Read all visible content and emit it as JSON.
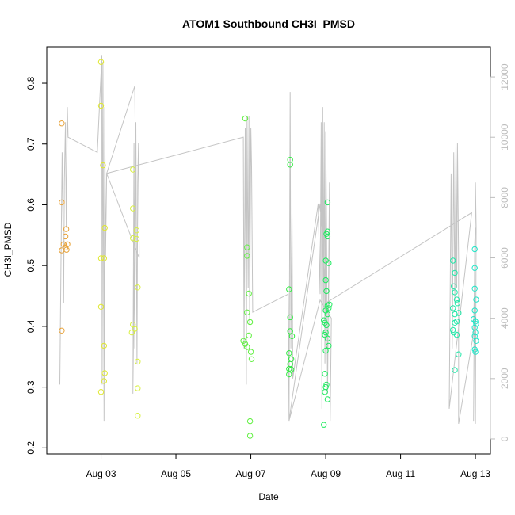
{
  "chart_data": {
    "type": "scatter",
    "title": "ATOM1 Southbound CH3I_PMSD",
    "xlabel": "Date",
    "ylabel": "CH3I_PMSD",
    "x_axis": {
      "min": 1.55,
      "max": 13.4,
      "ticks": [
        {
          "value": 3,
          "label": "Aug 03"
        },
        {
          "value": 5,
          "label": "Aug 05"
        },
        {
          "value": 7,
          "label": "Aug 07"
        },
        {
          "value": 9,
          "label": "Aug 09"
        },
        {
          "value": 11,
          "label": "Aug 11"
        },
        {
          "value": 13,
          "label": "Aug 13"
        }
      ]
    },
    "y_axis": {
      "min": 0.19,
      "max": 0.86,
      "ticks": [
        0.2,
        0.3,
        0.4,
        0.5,
        0.6,
        0.7,
        0.8
      ]
    },
    "y2_axis": {
      "min": -500,
      "max": 13000,
      "ticks": [
        0,
        2000,
        4000,
        6000,
        8000,
        10000,
        12000
      ],
      "color": "#bdbdbd"
    },
    "grid": false,
    "legend": "none",
    "series": [
      {
        "marker": "open-circle",
        "color": "#e8a33a",
        "points": [
          [
            1.95,
            0.734
          ],
          [
            1.95,
            0.604
          ],
          [
            1.95,
            0.393
          ],
          [
            1.95,
            0.525
          ],
          [
            2.0,
            0.535
          ],
          [
            2.05,
            0.548
          ],
          [
            2.07,
            0.56
          ],
          [
            2.05,
            0.53
          ],
          [
            2.1,
            0.535
          ],
          [
            2.08,
            0.526
          ]
        ]
      },
      {
        "marker": "open-circle",
        "color": "#e0e830",
        "points": [
          [
            3.0,
            0.835
          ],
          [
            3.0,
            0.763
          ],
          [
            3.05,
            0.665
          ],
          [
            3.1,
            0.562
          ],
          [
            3.0,
            0.512
          ],
          [
            3.08,
            0.512
          ],
          [
            3.0,
            0.432
          ],
          [
            3.08,
            0.368
          ],
          [
            3.1,
            0.323
          ],
          [
            3.08,
            0.31
          ],
          [
            3.0,
            0.292
          ]
        ]
      },
      {
        "marker": "open-circle",
        "color": "#d8f040",
        "points": [
          [
            3.85,
            0.658
          ],
          [
            3.85,
            0.594
          ],
          [
            3.85,
            0.545
          ],
          [
            3.95,
            0.558
          ],
          [
            3.95,
            0.544
          ],
          [
            3.98,
            0.464
          ],
          [
            3.85,
            0.403
          ],
          [
            3.9,
            0.396
          ],
          [
            3.82,
            0.39
          ],
          [
            3.98,
            0.342
          ],
          [
            3.98,
            0.298
          ],
          [
            3.98,
            0.253
          ]
        ]
      },
      {
        "marker": "open-circle",
        "color": "#60f040",
        "points": [
          [
            6.85,
            0.742
          ],
          [
            6.9,
            0.53
          ],
          [
            6.9,
            0.516
          ],
          [
            6.95,
            0.454
          ],
          [
            6.9,
            0.423
          ],
          [
            6.98,
            0.407
          ],
          [
            6.95,
            0.385
          ],
          [
            6.8,
            0.376
          ],
          [
            6.85,
            0.371
          ],
          [
            6.9,
            0.366
          ],
          [
            7.0,
            0.358
          ],
          [
            7.02,
            0.346
          ],
          [
            6.98,
            0.244
          ],
          [
            6.98,
            0.22
          ]
        ]
      },
      {
        "marker": "open-circle",
        "color": "#30ec40",
        "points": [
          [
            8.05,
            0.674
          ],
          [
            8.05,
            0.666
          ],
          [
            8.02,
            0.461
          ],
          [
            8.05,
            0.415
          ],
          [
            8.05,
            0.392
          ],
          [
            8.1,
            0.384
          ],
          [
            8.02,
            0.356
          ],
          [
            8.08,
            0.346
          ],
          [
            8.05,
            0.338
          ],
          [
            8.02,
            0.33
          ],
          [
            8.08,
            0.329
          ],
          [
            8.02,
            0.321
          ]
        ]
      },
      {
        "marker": "open-circle",
        "color": "#20ea60",
        "points": [
          [
            9.05,
            0.604
          ],
          [
            9.05,
            0.556
          ],
          [
            9.02,
            0.552
          ],
          [
            9.05,
            0.548
          ],
          [
            9.0,
            0.508
          ],
          [
            9.08,
            0.504
          ],
          [
            9.0,
            0.476
          ],
          [
            9.02,
            0.458
          ],
          [
            9.1,
            0.436
          ],
          [
            9.05,
            0.434
          ],
          [
            9.08,
            0.43
          ],
          [
            9.0,
            0.426
          ],
          [
            9.05,
            0.42
          ],
          [
            8.95,
            0.41
          ],
          [
            8.98,
            0.406
          ],
          [
            9.02,
            0.402
          ],
          [
            9.0,
            0.39
          ],
          [
            8.98,
            0.386
          ],
          [
            9.05,
            0.38
          ],
          [
            9.08,
            0.368
          ],
          [
            9.0,
            0.36
          ],
          [
            8.98,
            0.322
          ],
          [
            9.02,
            0.304
          ],
          [
            9.0,
            0.3
          ],
          [
            8.98,
            0.292
          ],
          [
            9.05,
            0.28
          ],
          [
            8.95,
            0.238
          ]
        ]
      },
      {
        "marker": "open-circle",
        "color": "#20e8a8",
        "points": [
          [
            12.4,
            0.508
          ],
          [
            12.45,
            0.488
          ],
          [
            12.42,
            0.466
          ],
          [
            12.45,
            0.456
          ],
          [
            12.5,
            0.444
          ],
          [
            12.52,
            0.438
          ],
          [
            12.4,
            0.43
          ],
          [
            12.45,
            0.42
          ],
          [
            12.55,
            0.422
          ],
          [
            12.5,
            0.408
          ],
          [
            12.45,
            0.406
          ],
          [
            12.4,
            0.394
          ],
          [
            12.42,
            0.39
          ],
          [
            12.5,
            0.386
          ],
          [
            12.55,
            0.354
          ],
          [
            12.45,
            0.328
          ]
        ]
      },
      {
        "marker": "open-circle",
        "color": "#20e6c8",
        "points": [
          [
            12.98,
            0.527
          ],
          [
            12.98,
            0.496
          ],
          [
            12.98,
            0.462
          ],
          [
            13.02,
            0.444
          ],
          [
            12.98,
            0.426
          ],
          [
            12.95,
            0.412
          ],
          [
            13.0,
            0.408
          ],
          [
            13.02,
            0.404
          ],
          [
            12.98,
            0.398
          ],
          [
            13.0,
            0.39
          ],
          [
            12.98,
            0.384
          ],
          [
            13.02,
            0.376
          ],
          [
            12.98,
            0.362
          ],
          [
            13.0,
            0.358
          ]
        ]
      },
      {
        "name": "",
        "type": "line",
        "axis": "y2",
        "color": "#c4c4c4",
        "points": [
          [
            1.9,
            1800
          ],
          [
            1.93,
            6000
          ],
          [
            1.96,
            9500
          ],
          [
            1.98,
            7500
          ],
          [
            2.0,
            4500
          ],
          [
            2.02,
            8500
          ],
          [
            2.05,
            10500
          ],
          [
            2.07,
            7000
          ],
          [
            2.1,
            11000
          ],
          [
            2.12,
            10000
          ],
          [
            2.9,
            9500
          ],
          [
            3.02,
            12700
          ],
          [
            3.03,
            1800
          ],
          [
            3.05,
            12500
          ],
          [
            3.08,
            600
          ],
          [
            3.1,
            11000
          ],
          [
            3.12,
            6000
          ],
          [
            3.15,
            8800
          ],
          [
            3.9,
            11700
          ],
          [
            3.92,
            9200
          ],
          [
            3.85,
            1500
          ],
          [
            3.88,
            9800
          ],
          [
            3.9,
            3000
          ],
          [
            3.93,
            10500
          ],
          [
            3.96,
            2500
          ],
          [
            3.98,
            8500
          ],
          [
            4.0,
            9800
          ],
          [
            4.02,
            6000
          ],
          [
            3.15,
            8800
          ],
          [
            6.8,
            10000
          ],
          [
            6.82,
            3000
          ],
          [
            6.85,
            10300
          ],
          [
            6.88,
            1800
          ],
          [
            6.9,
            10700
          ],
          [
            6.93,
            5000
          ],
          [
            6.95,
            10700
          ],
          [
            6.97,
            3800
          ],
          [
            7.0,
            10300
          ],
          [
            7.02,
            9000
          ],
          [
            7.05,
            4200
          ],
          [
            8.0,
            4800
          ],
          [
            8.02,
            600
          ],
          [
            8.05,
            11500
          ],
          [
            8.07,
            3000
          ],
          [
            8.1,
            7500
          ],
          [
            8.12,
            2000
          ],
          [
            8.8,
            7800
          ],
          [
            8.85,
            4800
          ],
          [
            8.88,
            10500
          ],
          [
            8.9,
            1000
          ],
          [
            8.92,
            11000
          ],
          [
            8.94,
            4200
          ],
          [
            8.96,
            10500
          ],
          [
            8.98,
            2500
          ],
          [
            9.0,
            10200
          ],
          [
            9.02,
            7500
          ],
          [
            9.05,
            1500
          ],
          [
            9.1,
            8500
          ],
          [
            9.12,
            600
          ],
          [
            9.15,
            4000
          ],
          [
            8.85,
            4600
          ],
          [
            8.02,
            600
          ],
          [
            8.85,
            7800
          ],
          [
            9.0,
            4500
          ],
          [
            12.9,
            7500
          ],
          [
            12.3,
            1000
          ],
          [
            12.35,
            8800
          ],
          [
            12.38,
            3000
          ],
          [
            12.42,
            9500
          ],
          [
            12.45,
            4500
          ],
          [
            12.48,
            9800
          ],
          [
            12.5,
            5000
          ],
          [
            12.52,
            9800
          ],
          [
            12.55,
            6000
          ],
          [
            12.55,
            500
          ],
          [
            12.95,
            3500
          ],
          [
            13.0,
            7000
          ],
          [
            12.98,
            6500
          ],
          [
            12.95,
            600
          ],
          [
            13.0,
            8500
          ],
          [
            13.02,
            7000
          ],
          [
            13.0,
            500
          ]
        ]
      }
    ]
  }
}
